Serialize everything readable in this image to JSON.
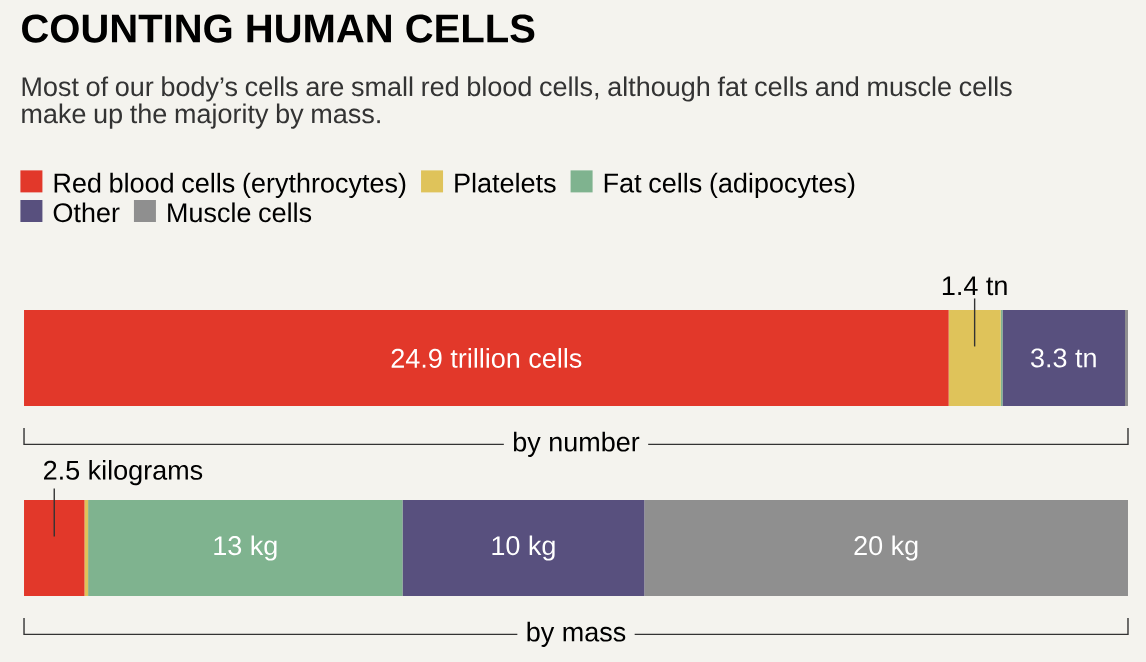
{
  "chart_data": [
    {
      "type": "bar",
      "orientation": "horizontal",
      "stacked": true,
      "title": "COUNTING HUMAN CELLS",
      "subtitle": "Most of our body’s cells are small red blood cells, although fat cells and muscle cells make up the majority by mass.",
      "xlabel": "by number",
      "categories": [
        null
      ],
      "legend": "top",
      "tick_labels": false,
      "series": [
        {
          "name": "Red blood cells (erythrocytes)",
          "color": "#e2382a",
          "values": [
            24.9
          ],
          "value_labels": [
            "24.9 trillion cells"
          ]
        },
        {
          "name": "Platelets",
          "color": "#dfc35a",
          "values": [
            1.4
          ],
          "value_labels": [
            "1.4 tn"
          ]
        },
        {
          "name": "Fat cells (adipocytes)",
          "color": "#7fb38f",
          "values": [
            0.05
          ],
          "value_labels": [
            null
          ]
        },
        {
          "name": "Other",
          "color": "#58507e",
          "values": [
            3.3
          ],
          "value_labels": [
            "3.3 tn"
          ]
        },
        {
          "name": "Muscle cells",
          "color": "#8f8f8f",
          "values": [
            0.08
          ],
          "value_labels": [
            null
          ]
        }
      ]
    },
    {
      "type": "bar",
      "orientation": "horizontal",
      "stacked": true,
      "xlabel": "by mass",
      "categories": [
        null
      ],
      "tick_labels": false,
      "series": [
        {
          "color": "#e2382a",
          "values": [
            2.5
          ],
          "value_labels": [
            "2.5 kilograms"
          ]
        },
        {
          "color": "#dfc35a",
          "values": [
            0.15
          ],
          "value_labels": [
            null
          ]
        },
        {
          "color": "#7fb38f",
          "values": [
            13
          ],
          "value_labels": [
            "13 kg"
          ]
        },
        {
          "color": "#58507e",
          "values": [
            10
          ],
          "value_labels": [
            "10 kg"
          ]
        },
        {
          "color": "#8f8f8f",
          "values": [
            20
          ],
          "value_labels": [
            "20 kg"
          ]
        }
      ]
    }
  ]
}
